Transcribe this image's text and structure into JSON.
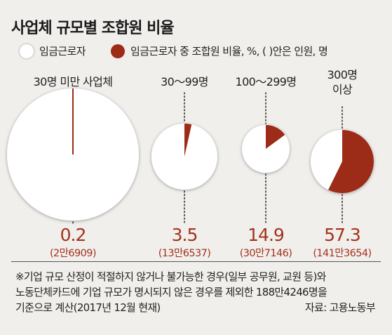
{
  "title": "사업체 규모별 조합원 비율",
  "legend": {
    "wage_workers": "임금근로자",
    "union_members": "임금근로자 중 조합원 비율, %, ( )안은 인원, 명"
  },
  "colors": {
    "union": "#9c2b17",
    "union_text": "#a3321e",
    "circle": "#ffffff",
    "background": "#f1efec"
  },
  "chart_data": {
    "type": "pie",
    "title": "사업체 규모별 조합원 비율",
    "categories": [
      {
        "label_lines": [
          "30명 미만 사업체"
        ],
        "percent": 0.2,
        "count": "(2만6909)",
        "display_value": "0.2"
      },
      {
        "label_lines": [
          "30～99명"
        ],
        "percent": 3.5,
        "count": "(13만6537)",
        "display_value": "3.5"
      },
      {
        "label_lines": [
          "100～299명"
        ],
        "percent": 14.9,
        "count": "(30만7146)",
        "display_value": "14.9"
      },
      {
        "label_lines": [
          "300명",
          "이상"
        ],
        "percent": 57.3,
        "count": "(141만3654)",
        "display_value": "57.3"
      }
    ]
  },
  "note": {
    "lines": [
      "※기업 규모 산정이 적절하지 않거나 불가능한 경우(일부 공무원, 교원 등)와",
      "노동단체카드에 기업 규모가 명시되지 않은 경우를 제외한 188만4246명을",
      "기준으로 계산(2017년 12월 현재)"
    ]
  },
  "source": "자료: 고용노동부"
}
